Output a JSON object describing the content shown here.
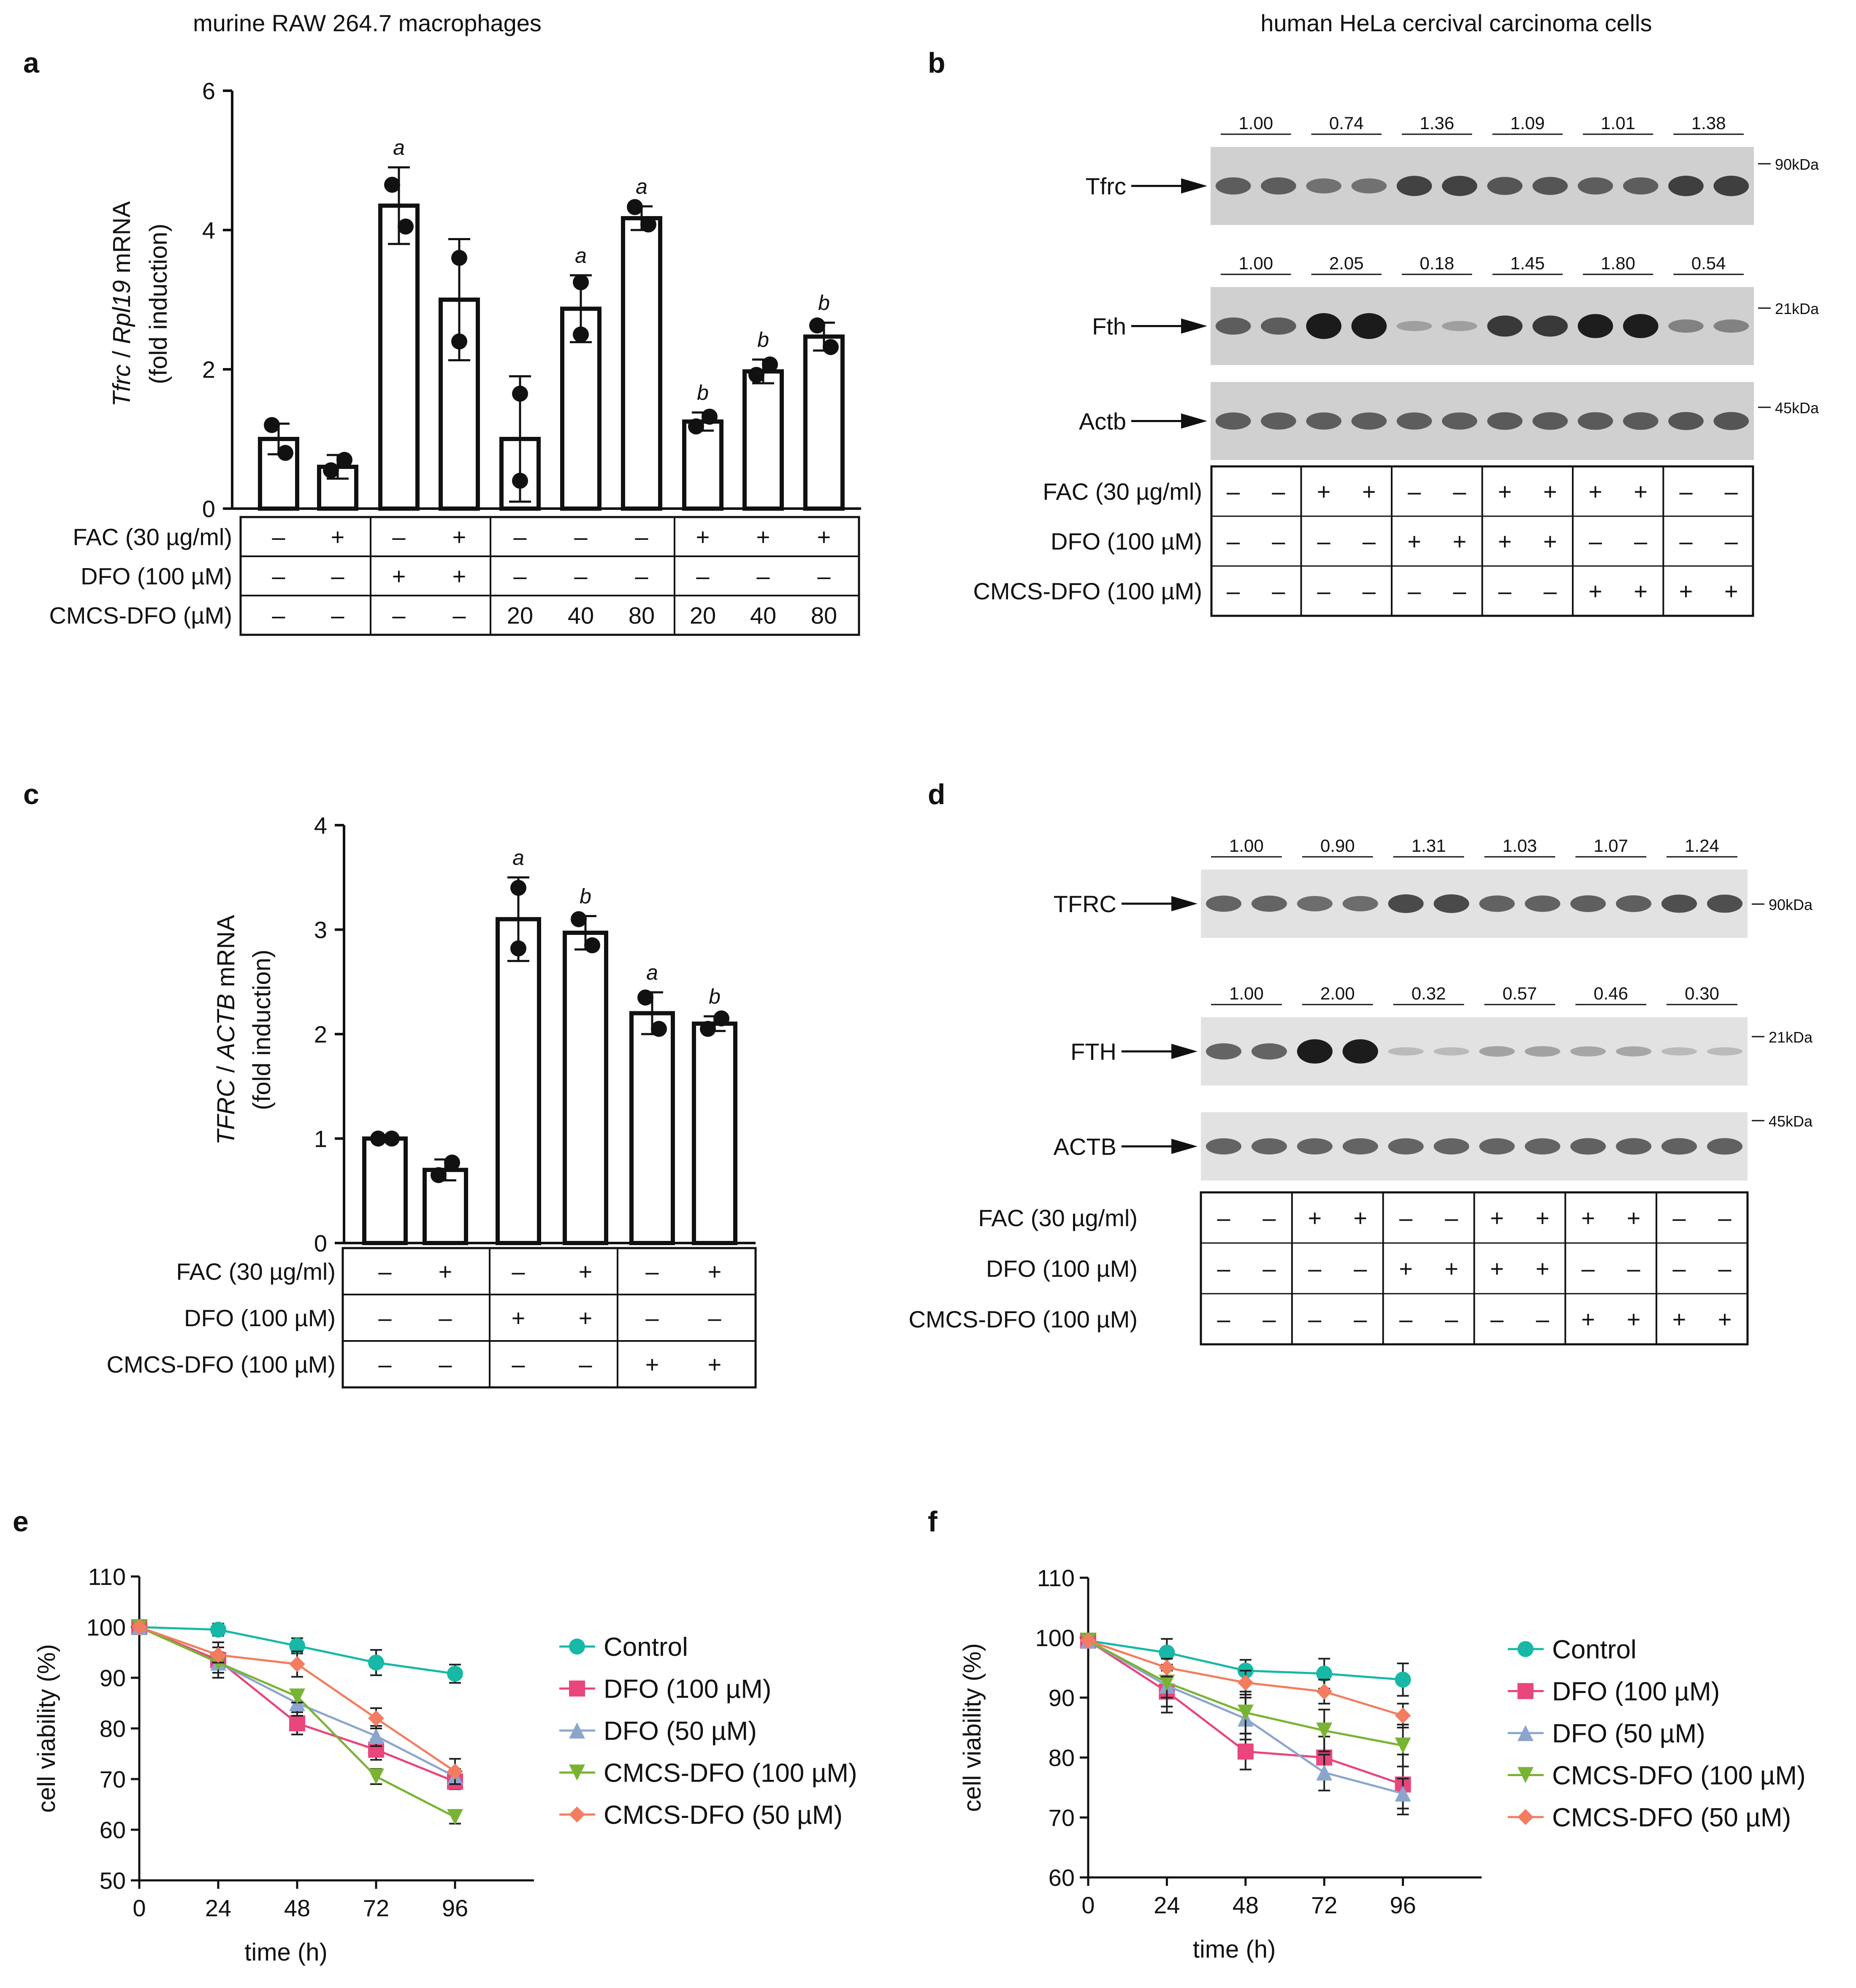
{
  "headers": {
    "left": "murine RAW 264.7 macrophages",
    "right": "human HeLa cercival carcinoma cells"
  },
  "panel_letters": {
    "a": "a",
    "b": "b",
    "c": "c",
    "d": "d",
    "e": "e",
    "f": "f"
  },
  "panel_a": {
    "ylabel_gene": "Tfrc",
    "ylabel_sep": " / ",
    "ylabel_ref": "Rpl19",
    "ylabel_suffix": " mRNA",
    "ylabel_line2": "(fold induction)",
    "rows": [
      {
        "label": "FAC (30 µg/ml)",
        "cells": [
          "–",
          "+",
          "–",
          "+",
          "–",
          "–",
          "–",
          "+",
          "+",
          "+"
        ]
      },
      {
        "label": "DFO (100 µM)",
        "cells": [
          "–",
          "–",
          "+",
          "+",
          "–",
          "–",
          "–",
          "–",
          "–",
          "–"
        ]
      },
      {
        "label": "CMCS-DFO (µM)",
        "cells": [
          "–",
          "–",
          "–",
          "–",
          "20",
          "40",
          "80",
          "20",
          "40",
          "80"
        ]
      }
    ]
  },
  "panel_b": {
    "bands": [
      {
        "label": "Tfrc",
        "ratios": [
          "1.00",
          "0.74",
          "1.36",
          "1.09",
          "1.01",
          "1.38"
        ],
        "marker": "90kDa"
      },
      {
        "label": "Fth",
        "ratios": [
          "1.00",
          "2.05",
          "0.18",
          "1.45",
          "1.80",
          "0.54"
        ],
        "marker": "21kDa"
      },
      {
        "label": "Actb",
        "ratios": [],
        "marker": "45kDa"
      }
    ],
    "rows": [
      {
        "label": "FAC (30 µg/ml)",
        "cells": [
          "–",
          "–",
          "+",
          "+",
          "–",
          "–",
          "+",
          "+",
          "+",
          "+",
          "–",
          "–"
        ]
      },
      {
        "label": "DFO (100 µM)",
        "cells": [
          "–",
          "–",
          "–",
          "–",
          "+",
          "+",
          "+",
          "+",
          "–",
          "–",
          "–",
          "–"
        ]
      },
      {
        "label": "CMCS-DFO (100 µM)",
        "cells": [
          "–",
          "–",
          "–",
          "–",
          "–",
          "–",
          "–",
          "–",
          "+",
          "+",
          "+",
          "+"
        ]
      }
    ]
  },
  "panel_c": {
    "ylabel_gene": "TFRC",
    "ylabel_sep": " / ",
    "ylabel_ref": "ACTB",
    "ylabel_suffix": " mRNA",
    "ylabel_line2": "(fold induction)",
    "rows": [
      {
        "label": "FAC (30 µg/ml)",
        "cells": [
          "–",
          "+",
          "–",
          "+",
          "–",
          "+"
        ]
      },
      {
        "label": "DFO (100 µM)",
        "cells": [
          "–",
          "–",
          "+",
          "+",
          "–",
          "–"
        ]
      },
      {
        "label": "CMCS-DFO (100 µM)",
        "cells": [
          "–",
          "–",
          "–",
          "–",
          "+",
          "+"
        ]
      }
    ]
  },
  "panel_d": {
    "bands": [
      {
        "label": "TFRC",
        "ratios": [
          "1.00",
          "0.90",
          "1.31",
          "1.03",
          "1.07",
          "1.24"
        ],
        "marker": "90kDa"
      },
      {
        "label": "FTH",
        "ratios": [
          "1.00",
          "2.00",
          "0.32",
          "0.57",
          "0.46",
          "0.30"
        ],
        "marker": "21kDa"
      },
      {
        "label": "ACTB",
        "ratios": [],
        "marker": "45kDa"
      }
    ],
    "rows": [
      {
        "label": "FAC (30 µg/ml)",
        "cells": [
          "–",
          "–",
          "+",
          "+",
          "–",
          "–",
          "+",
          "+",
          "+",
          "+",
          "–",
          "–"
        ]
      },
      {
        "label": "DFO (100 µM)",
        "cells": [
          "–",
          "–",
          "–",
          "–",
          "+",
          "+",
          "+",
          "+",
          "–",
          "–",
          "–",
          "–"
        ]
      },
      {
        "label": "CMCS-DFO (100 µM)",
        "cells": [
          "–",
          "–",
          "–",
          "–",
          "–",
          "–",
          "–",
          "–",
          "+",
          "+",
          "+",
          "+"
        ]
      }
    ]
  },
  "chart_data": [
    {
      "id": "a",
      "type": "bar",
      "title": "",
      "xlabel": "",
      "ylabel": "Tfrc / Rpl19 mRNA (fold induction)",
      "ylim": [
        0,
        6
      ],
      "yticks": [
        "0",
        "2",
        "4",
        "6"
      ],
      "values": [
        1.0,
        0.6,
        4.35,
        3.0,
        1.0,
        2.87,
        4.17,
        1.25,
        1.97,
        2.47
      ],
      "errors": [
        0.22,
        0.17,
        0.55,
        0.87,
        0.9,
        0.48,
        0.17,
        0.13,
        0.17,
        0.2
      ],
      "points": [
        [
          1.2,
          0.8
        ],
        [
          0.55,
          0.7
        ],
        [
          4.65,
          4.05
        ],
        [
          3.6,
          2.4
        ],
        [
          1.65,
          0.4
        ],
        [
          3.25,
          2.5
        ],
        [
          4.33,
          4.08
        ],
        [
          1.18,
          1.32
        ],
        [
          1.92,
          2.07
        ],
        [
          2.63,
          2.32
        ]
      ],
      "labels": [
        "",
        "",
        "a",
        "",
        "",
        "a",
        "a",
        "b",
        "b",
        "b"
      ]
    },
    {
      "id": "c",
      "type": "bar",
      "title": "",
      "xlabel": "",
      "ylabel": "TFRC / ACTB mRNA (fold induction)",
      "ylim": [
        0,
        4
      ],
      "yticks": [
        "0",
        "1",
        "2",
        "3",
        "4"
      ],
      "values": [
        1.0,
        0.7,
        3.1,
        2.97,
        2.2,
        2.1
      ],
      "errors": [
        0.03,
        0.1,
        0.4,
        0.16,
        0.2,
        0.07
      ],
      "points": [
        [
          1.0,
          1.0
        ],
        [
          0.65,
          0.77
        ],
        [
          3.4,
          2.82
        ],
        [
          3.1,
          2.85
        ],
        [
          2.35,
          2.05
        ],
        [
          2.05,
          2.15
        ]
      ],
      "labels": [
        "",
        "",
        "a",
        "b",
        "a",
        "b"
      ]
    },
    {
      "id": "e",
      "type": "line",
      "title": "",
      "xlabel": "time (h)",
      "ylabel": "cell viability (%)",
      "xlim": [
        0,
        120
      ],
      "ylim": [
        50,
        110
      ],
      "xticks": [
        0,
        24,
        48,
        72,
        96
      ],
      "yticks": [
        50,
        60,
        70,
        80,
        90,
        100,
        110
      ],
      "x": [
        0,
        24,
        48,
        72,
        96
      ],
      "series": [
        {
          "name": "Control",
          "color": "#17b8a6",
          "marker": "circle",
          "values": [
            100,
            99.5,
            96.3,
            93,
            90.8
          ],
          "err": [
            0,
            1.2,
            1.5,
            2.5,
            1.8
          ]
        },
        {
          "name": "DFO (100 µM)",
          "color": "#e8467c",
          "marker": "square",
          "values": [
            100,
            93.5,
            81,
            75.8,
            69.5
          ],
          "err": [
            0,
            3.5,
            2.2,
            2,
            1.5
          ]
        },
        {
          "name": "DFO (50 µM)",
          "color": "#8ca5cd",
          "marker": "triangle-up",
          "values": [
            100,
            93,
            85,
            78.5,
            70.5
          ],
          "err": [
            0,
            3,
            2.5,
            2,
            1.5
          ]
        },
        {
          "name": "CMCS-DFO (100 µM)",
          "color": "#78b432",
          "marker": "triangle-down",
          "values": [
            100,
            93,
            86.3,
            70.5,
            62.5
          ],
          "err": [
            0,
            2,
            1.2,
            1.5,
            1.3
          ]
        },
        {
          "name": "CMCS-DFO (50 µM)",
          "color": "#f47c60",
          "marker": "diamond",
          "values": [
            100,
            94.5,
            92.7,
            82,
            71.5
          ],
          "err": [
            0,
            1.5,
            2.5,
            2,
            2.5
          ]
        }
      ]
    },
    {
      "id": "f",
      "type": "line",
      "title": "",
      "xlabel": "time (h)",
      "ylabel": "cell viability (%)",
      "xlim": [
        0,
        120
      ],
      "ylim": [
        60,
        110
      ],
      "xticks": [
        0,
        24,
        48,
        72,
        96
      ],
      "yticks": [
        60,
        70,
        80,
        90,
        100,
        110
      ],
      "x": [
        0,
        24,
        48,
        72,
        96
      ],
      "series": [
        {
          "name": "Control",
          "color": "#17b8a6",
          "marker": "circle",
          "values": [
            99.5,
            97.5,
            94.5,
            94,
            93
          ],
          "err": [
            0,
            2.3,
            1.8,
            2.5,
            2.7
          ]
        },
        {
          "name": "DFO (100 µM)",
          "color": "#e8467c",
          "marker": "square",
          "values": [
            99.5,
            91,
            81,
            80,
            75.5
          ],
          "err": [
            0,
            3.5,
            3,
            3.5,
            5
          ]
        },
        {
          "name": "DFO (50 µM)",
          "color": "#8ca5cd",
          "marker": "triangle-up",
          "values": [
            99.5,
            92,
            86.5,
            77.5,
            74
          ],
          "err": [
            0,
            3.5,
            3.5,
            3,
            2.5
          ]
        },
        {
          "name": "CMCS-DFO (100 µM)",
          "color": "#78b432",
          "marker": "triangle-down",
          "values": [
            99.5,
            92.5,
            87.5,
            84.5,
            82
          ],
          "err": [
            0,
            2.5,
            3.5,
            3.5,
            3.5
          ]
        },
        {
          "name": "CMCS-DFO (50 µM)",
          "color": "#f47c60",
          "marker": "diamond",
          "values": [
            99.5,
            95,
            92.5,
            91,
            87
          ],
          "err": [
            0,
            1.5,
            2,
            2,
            2
          ]
        }
      ]
    }
  ]
}
